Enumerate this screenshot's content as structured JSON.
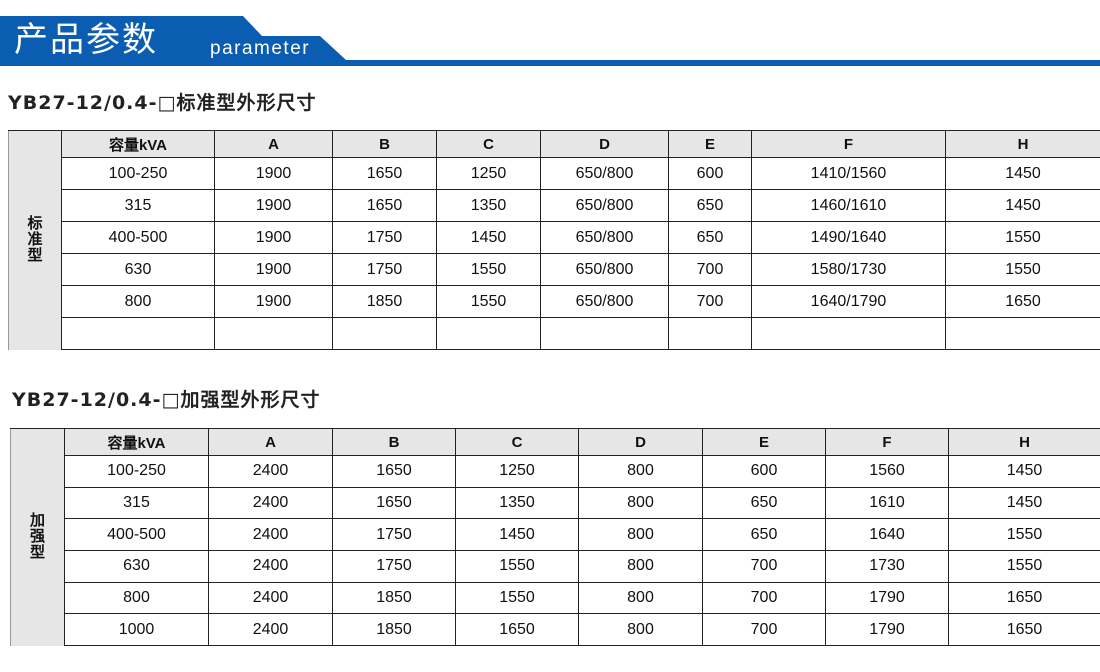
{
  "banner": {
    "title": "产品参数",
    "subtitle": "parameter",
    "color": "#0a5db0"
  },
  "standard": {
    "title": "YB27-12/0.4-□标准型外形尺寸",
    "side_label": "标\n准\n型",
    "headers": [
      "容量kVA",
      "A",
      "B",
      "C",
      "D",
      "E",
      "F",
      "H"
    ],
    "rows": [
      [
        "100-250",
        "1900",
        "1650",
        "1250",
        "650/800",
        "600",
        "1410/1560",
        "1450"
      ],
      [
        "315",
        "1900",
        "1650",
        "1350",
        "650/800",
        "650",
        "1460/1610",
        "1450"
      ],
      [
        "400-500",
        "1900",
        "1750",
        "1450",
        "650/800",
        "650",
        "1490/1640",
        "1550"
      ],
      [
        "630",
        "1900",
        "1750",
        "1550",
        "650/800",
        "700",
        "1580/1730",
        "1550"
      ],
      [
        "800",
        "1900",
        "1850",
        "1550",
        "650/800",
        "700",
        "1640/1790",
        "1650"
      ],
      [
        "",
        "",
        "",
        "",
        "",
        "",
        "",
        ""
      ]
    ]
  },
  "reinforced": {
    "title": "YB27-12/0.4-□加强型外形尺寸",
    "side_label": "加\n强\n型",
    "headers": [
      "容量kVA",
      "A",
      "B",
      "C",
      "D",
      "E",
      "F",
      "H"
    ],
    "rows": [
      [
        "100-250",
        "2400",
        "1650",
        "1250",
        "800",
        "600",
        "1560",
        "1450"
      ],
      [
        "315",
        "2400",
        "1650",
        "1350",
        "800",
        "650",
        "1610",
        "1450"
      ],
      [
        "400-500",
        "2400",
        "1750",
        "1450",
        "800",
        "650",
        "1640",
        "1550"
      ],
      [
        "630",
        "2400",
        "1750",
        "1550",
        "800",
        "700",
        "1730",
        "1550"
      ],
      [
        "800",
        "2400",
        "1850",
        "1550",
        "800",
        "700",
        "1790",
        "1650"
      ],
      [
        "1000",
        "2400",
        "1850",
        "1650",
        "800",
        "700",
        "1790",
        "1650"
      ]
    ]
  }
}
